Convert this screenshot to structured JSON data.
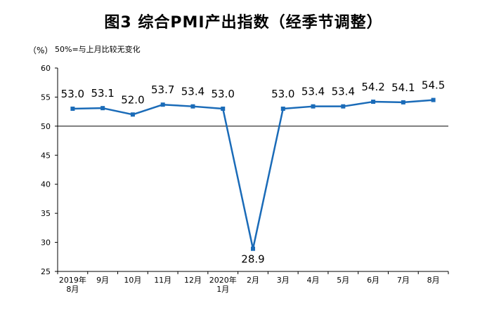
{
  "header": {
    "title": "图3 综合PMI产出指数（经季节调整）",
    "unit": "（%）",
    "note": "50%=与上月比较无变化"
  },
  "chart_data": {
    "type": "line",
    "title": "图3 综合PMI产出指数（经季节调整）",
    "ylabel": "（%）",
    "xlabel": "",
    "ylim": [
      25,
      60
    ],
    "yticks": [
      25,
      30,
      35,
      40,
      45,
      50,
      55,
      60
    ],
    "reference_line": 50,
    "categories": [
      [
        "2019年",
        "8月"
      ],
      [
        "9月"
      ],
      [
        "10月"
      ],
      [
        "11月"
      ],
      [
        "12月"
      ],
      [
        "2020年",
        "1月"
      ],
      [
        "2月"
      ],
      [
        "3月"
      ],
      [
        "4月"
      ],
      [
        "5月"
      ],
      [
        "6月"
      ],
      [
        "7月"
      ],
      [
        "8月"
      ]
    ],
    "series": [
      {
        "values": [
          53.0,
          53.1,
          52.0,
          53.7,
          53.4,
          53.0,
          28.9,
          53.0,
          53.4,
          53.4,
          54.2,
          54.1,
          54.5
        ]
      }
    ],
    "data_labels": [
      "53.0",
      "53.1",
      "52.0",
      "53.7",
      "53.4",
      "53.0",
      "28.9",
      "53.0",
      "53.4",
      "53.4",
      "54.2",
      "54.1",
      "54.5"
    ],
    "grid": false,
    "legend": "none",
    "color": "#1a6bb8"
  }
}
